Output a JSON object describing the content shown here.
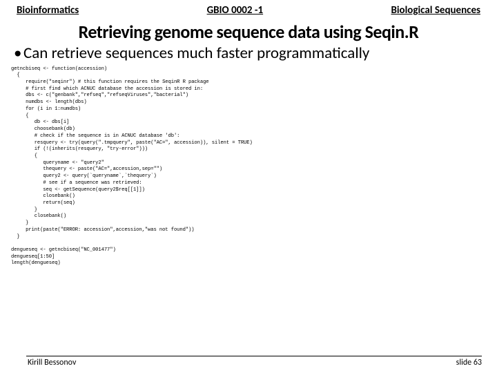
{
  "header": {
    "left": "Bioinformatics",
    "center": "GBIO 0002 -1",
    "right": "Biological Sequences"
  },
  "title": "Retrieving genome sequence data using Seqin.R",
  "bullet1": "Can retrieve sequences much faster programmatically",
  "code": "getncbiseq <- function(accession)\n  {\n     require(\"seqinr\") # this function requires the SeqinR R package\n     # first find which ACNUC database the accession is stored in:\n     dbs <- c(\"genbank\",\"refseq\",\"refseqViruses\",\"bacterial\")\n     numdbs <- length(dbs)\n     for (i in 1:numdbs)\n     {\n        db <- dbs[i]\n        choosebank(db)\n        # check if the sequence is in ACNUC database 'db':\n        resquery <- try(query(\".tmpquery\", paste(\"AC=\", accession)), silent = TRUE)\n        if (!(inherits(resquery, \"try-error\")))\n        {\n           queryname <- \"query2\"\n           thequery <- paste(\"AC=\",accession,sep=\"\")\n           query2 <- query(`queryname`,`thequery`)\n           # see if a sequence was retrieved:\n           seq <- getSequence(query2$req[[1]])\n           closebank()\n           return(seq)\n        }\n        closebank()\n     }\n     print(paste(\"ERROR: accession\",accession,\"was not found\"))\n  }\n\ndengueseq <- getncbiseq(\"NC_001477\")\ndengueseq[1:50]\nlength(dengueseq)",
  "footer": {
    "author": "Kirill Bessonov",
    "page": "slide 63"
  }
}
